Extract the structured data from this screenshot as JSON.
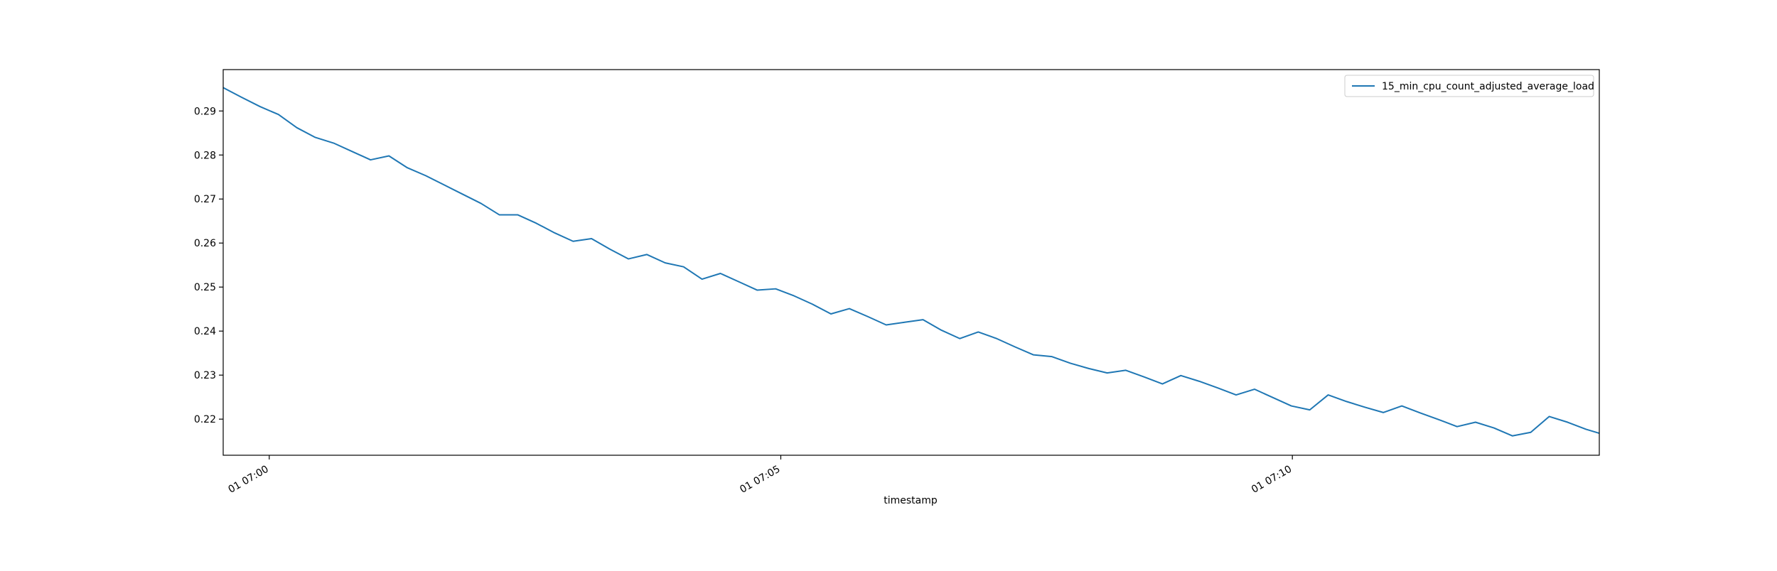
{
  "chart_data": {
    "type": "line",
    "title": "",
    "xlabel": "timestamp",
    "ylabel": "",
    "x_unit": "minutes after 01 07:00",
    "x_ticks": [
      {
        "value": 0,
        "label": "01 07:00"
      },
      {
        "value": 5,
        "label": "01 07:05"
      },
      {
        "value": 10,
        "label": "01 07:10"
      }
    ],
    "y_ticks": [
      0.22,
      0.23,
      0.24,
      0.25,
      0.26,
      0.27,
      0.28,
      0.29
    ],
    "xlim": [
      -0.45,
      13.0
    ],
    "ylim": [
      0.2118,
      0.2994
    ],
    "grid": false,
    "legend_position": "top-right",
    "series": [
      {
        "name": "15_min_cpu_count_adjusted_average_load",
        "color": "#1f77b4",
        "x": [
          -0.45,
          -0.27,
          -0.09,
          0.09,
          0.27,
          0.45,
          0.63,
          0.81,
          0.99,
          1.17,
          1.35,
          1.53,
          1.71,
          1.89,
          2.07,
          2.25,
          2.43,
          2.61,
          2.79,
          2.97,
          3.15,
          3.33,
          3.51,
          3.69,
          3.87,
          4.05,
          4.23,
          4.41,
          4.59,
          4.77,
          4.95,
          5.13,
          5.31,
          5.49,
          5.67,
          5.85,
          6.03,
          6.21,
          6.39,
          6.57,
          6.75,
          6.93,
          7.11,
          7.29,
          7.47,
          7.65,
          7.83,
          8.01,
          8.19,
          8.37,
          8.55,
          8.73,
          8.91,
          9.09,
          9.27,
          9.45,
          9.63,
          9.81,
          9.99,
          10.17,
          10.35,
          10.53,
          10.71,
          10.89,
          11.07,
          11.25,
          11.43,
          11.61,
          11.79,
          11.97,
          12.15,
          12.33,
          12.51,
          12.69,
          12.87,
          13.0
        ],
        "values": [
          0.2953,
          0.2931,
          0.291,
          0.2892,
          0.2862,
          0.284,
          0.2827,
          0.2808,
          0.2789,
          0.2798,
          0.2771,
          0.2753,
          0.2732,
          0.2711,
          0.269,
          0.2664,
          0.2664,
          0.2645,
          0.2623,
          0.2604,
          0.261,
          0.2586,
          0.2564,
          0.2574,
          0.2555,
          0.2546,
          0.2518,
          0.2531,
          0.2512,
          0.2493,
          0.2496,
          0.248,
          0.2461,
          0.2439,
          0.2451,
          0.2433,
          0.2414,
          0.242,
          0.2426,
          0.2402,
          0.2383,
          0.2398,
          0.2383,
          0.2364,
          0.2346,
          0.2342,
          0.2327,
          0.2315,
          0.2305,
          0.2311,
          0.2296,
          0.228,
          0.2299,
          0.2286,
          0.2271,
          0.2255,
          0.2268,
          0.2249,
          0.223,
          0.2221,
          0.2255,
          0.224,
          0.2227,
          0.2215,
          0.223,
          0.2214,
          0.2199,
          0.2183,
          0.2193,
          0.218,
          0.2162,
          0.217,
          0.2206,
          0.2193,
          0.2177,
          0.2168
        ]
      }
    ]
  }
}
